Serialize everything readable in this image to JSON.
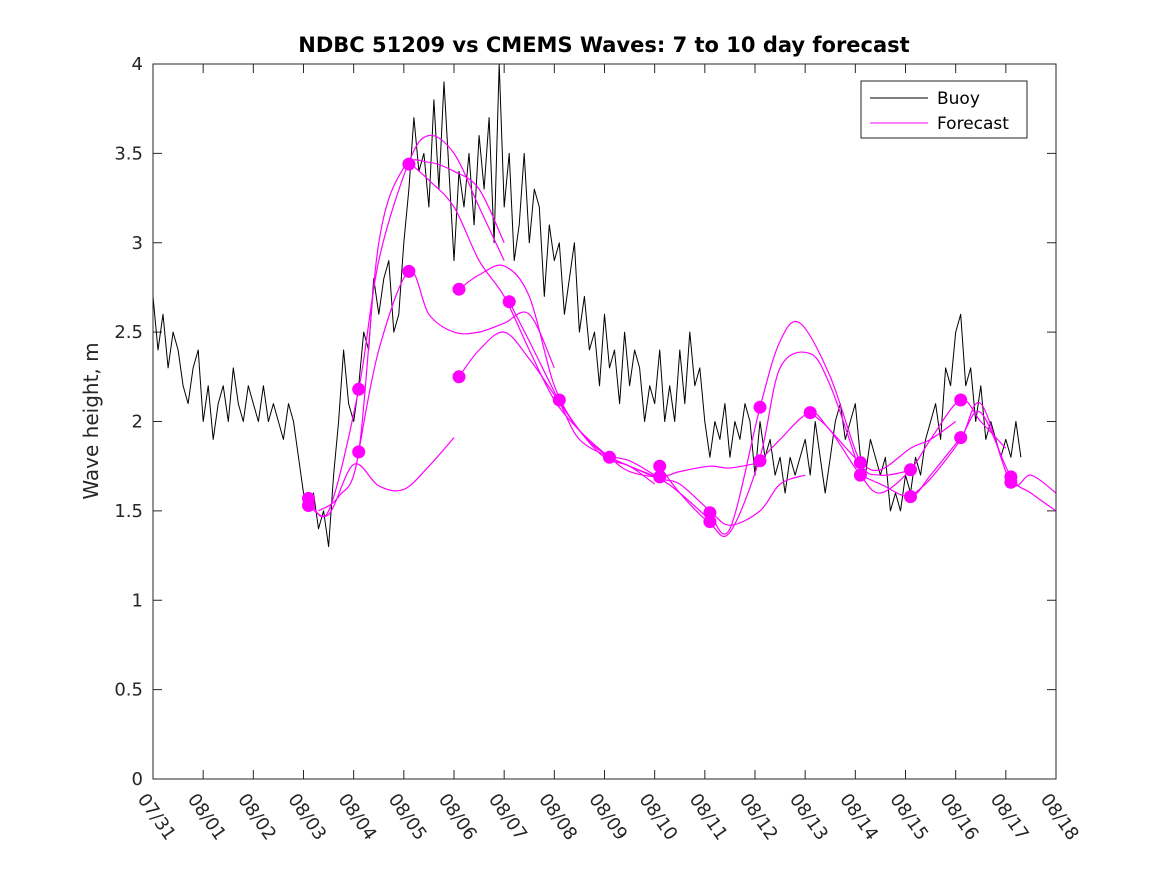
{
  "chart_data": {
    "type": "line",
    "title": "NDBC 51209 vs CMEMS Waves: 7 to 10 day forecast",
    "xlabel": "",
    "ylabel": "Wave height, m",
    "x_units": "days since 07/31",
    "xlim": [
      0,
      18
    ],
    "ylim": [
      0,
      4
    ],
    "yticks": [
      0,
      0.5,
      1,
      1.5,
      2,
      2.5,
      3,
      3.5,
      4
    ],
    "ytick_labels": [
      "0",
      "0.5",
      "1",
      "1.5",
      "2",
      "2.5",
      "3",
      "3.5",
      "4"
    ],
    "xtick_labels": [
      "07/31",
      "08/01",
      "08/02",
      "08/03",
      "08/04",
      "08/05",
      "08/06",
      "08/07",
      "08/08",
      "08/09",
      "08/10",
      "08/11",
      "08/12",
      "08/13",
      "08/14",
      "08/15",
      "08/16",
      "08/17",
      "08/18"
    ],
    "legend_position": "top-right",
    "series": [
      {
        "name": "Buoy",
        "color": "#000000",
        "x": [
          0,
          0.1,
          0.2,
          0.3,
          0.4,
          0.5,
          0.6,
          0.7,
          0.8,
          0.9,
          1.0,
          1.1,
          1.2,
          1.3,
          1.4,
          1.5,
          1.6,
          1.7,
          1.8,
          1.9,
          2.0,
          2.1,
          2.2,
          2.3,
          2.4,
          2.5,
          2.6,
          2.7,
          2.8,
          2.9,
          3.0,
          3.1,
          3.2,
          3.3,
          3.4,
          3.5,
          3.6,
          3.7,
          3.8,
          3.9,
          4.0,
          4.1,
          4.2,
          4.3,
          4.4,
          4.5,
          4.6,
          4.7,
          4.8,
          4.9,
          5.0,
          5.1,
          5.2,
          5.3,
          5.4,
          5.5,
          5.6,
          5.7,
          5.8,
          5.9,
          6.0,
          6.1,
          6.2,
          6.3,
          6.4,
          6.5,
          6.6,
          6.7,
          6.8,
          6.9,
          7.0,
          7.1,
          7.2,
          7.3,
          7.4,
          7.5,
          7.6,
          7.7,
          7.8,
          7.9,
          8.0,
          8.1,
          8.2,
          8.3,
          8.4,
          8.5,
          8.6,
          8.7,
          8.8,
          8.9,
          9.0,
          9.1,
          9.2,
          9.3,
          9.4,
          9.5,
          9.6,
          9.7,
          9.8,
          9.9,
          10.0,
          10.1,
          10.2,
          10.3,
          10.4,
          10.5,
          10.6,
          10.7,
          10.8,
          10.9,
          11.0,
          11.1,
          11.2,
          11.3,
          11.4,
          11.5,
          11.6,
          11.7,
          11.8,
          11.9,
          12.0,
          12.1,
          12.2,
          12.3,
          12.4,
          12.5,
          12.6,
          12.7,
          12.8,
          12.9,
          13.0,
          13.1,
          13.2,
          13.3,
          13.4,
          13.5,
          13.6,
          13.7,
          13.8,
          13.9,
          14.0,
          14.1,
          14.2,
          14.3,
          14.4,
          14.5,
          14.6,
          14.7,
          14.8,
          14.9,
          15.0,
          15.1,
          15.2,
          15.3,
          15.4,
          15.5,
          15.6,
          15.7,
          15.8,
          15.9,
          16.0,
          16.1,
          16.2,
          16.3,
          16.4,
          16.5,
          16.6,
          16.7,
          16.8,
          16.9,
          17.0,
          17.1,
          17.2,
          17.3
        ],
        "y": [
          2.7,
          2.4,
          2.6,
          2.3,
          2.5,
          2.4,
          2.2,
          2.1,
          2.3,
          2.4,
          2.0,
          2.2,
          1.9,
          2.1,
          2.2,
          2.0,
          2.3,
          2.1,
          2.0,
          2.2,
          2.1,
          2.0,
          2.2,
          2.0,
          2.1,
          2.0,
          1.9,
          2.1,
          2.0,
          1.8,
          1.6,
          1.5,
          1.6,
          1.4,
          1.5,
          1.3,
          1.7,
          2.0,
          2.4,
          2.1,
          2.0,
          2.2,
          2.5,
          2.4,
          2.8,
          2.6,
          2.8,
          2.9,
          2.5,
          2.6,
          3.0,
          3.3,
          3.7,
          3.4,
          3.5,
          3.2,
          3.8,
          3.3,
          3.9,
          3.4,
          2.9,
          3.4,
          3.2,
          3.5,
          3.1,
          3.6,
          3.3,
          3.7,
          3.0,
          4.0,
          3.2,
          3.5,
          2.9,
          3.1,
          3.5,
          3.0,
          3.3,
          3.2,
          2.7,
          3.1,
          2.9,
          3.0,
          2.6,
          2.8,
          3.0,
          2.5,
          2.7,
          2.4,
          2.5,
          2.2,
          2.6,
          2.3,
          2.4,
          2.1,
          2.5,
          2.2,
          2.4,
          2.3,
          2.0,
          2.2,
          2.1,
          2.4,
          2.0,
          2.2,
          2.0,
          2.4,
          2.1,
          2.5,
          2.2,
          2.3,
          2.0,
          1.8,
          2.0,
          1.9,
          2.1,
          1.8,
          2.0,
          1.9,
          2.1,
          2.0,
          1.7,
          2.0,
          1.8,
          1.9,
          1.7,
          1.8,
          1.6,
          1.8,
          1.7,
          1.8,
          1.9,
          1.7,
          2.0,
          1.8,
          1.6,
          1.8,
          2.0,
          2.1,
          1.9,
          2.0,
          2.1,
          1.8,
          1.7,
          1.9,
          1.8,
          1.7,
          1.8,
          1.5,
          1.6,
          1.5,
          1.7,
          1.6,
          1.8,
          1.7,
          1.9,
          2.0,
          2.1,
          1.9,
          2.3,
          2.2,
          2.5,
          2.6,
          2.2,
          2.3,
          2.0,
          2.2,
          1.9,
          2.0,
          1.9,
          1.8,
          1.9,
          1.8,
          2.0,
          1.8
        ]
      },
      {
        "name": "Forecast",
        "color": "#ff00ff",
        "runs": [
          {
            "x": [
              3.1,
              3.5,
              4.0,
              4.5,
              5.0,
              5.5,
              6.0
            ],
            "y": [
              1.53,
              1.48,
              1.76,
              1.64,
              1.62,
              1.75,
              1.91
            ]
          },
          {
            "x": [
              3.1,
              3.5,
              4.1,
              4.5,
              5.1,
              5.5,
              6.0,
              6.5,
              7.0
            ],
            "y": [
              1.57,
              1.5,
              2.18,
              2.9,
              3.45,
              3.6,
              3.5,
              3.2,
              2.9
            ]
          },
          {
            "x": [
              3.3,
              3.7,
              4.1,
              4.5,
              5.0,
              5.5,
              6.0,
              6.5,
              7.0
            ],
            "y": [
              1.5,
              1.58,
              1.83,
              3.0,
              3.42,
              3.45,
              3.4,
              3.3,
              3.0
            ]
          },
          {
            "x": [
              4.1,
              4.5,
              5.1,
              5.5,
              6.0,
              6.5,
              7.0,
              7.5,
              8.0
            ],
            "y": [
              1.83,
              2.4,
              2.84,
              2.6,
              2.5,
              2.5,
              2.55,
              2.6,
              2.3
            ]
          },
          {
            "x": [
              5.1,
              5.5,
              6.0,
              6.5,
              7.0,
              7.5,
              8.0,
              8.5,
              9.0
            ],
            "y": [
              3.45,
              3.35,
              3.2,
              2.9,
              2.7,
              2.4,
              2.12,
              1.95,
              1.82
            ]
          },
          {
            "x": [
              6.1,
              6.5,
              7.0,
              7.5,
              8.0,
              8.5,
              9.0,
              9.5,
              10.0
            ],
            "y": [
              2.74,
              2.82,
              2.87,
              2.7,
              2.2,
              1.95,
              1.82,
              1.78,
              1.7
            ]
          },
          {
            "x": [
              6.1,
              6.5,
              7.0,
              7.5,
              8.0,
              8.5,
              9.0,
              9.5,
              10.0
            ],
            "y": [
              2.25,
              2.4,
              2.5,
              2.35,
              2.15,
              1.95,
              1.8,
              1.75,
              1.65
            ]
          },
          {
            "x": [
              7.1,
              7.5,
              8.1,
              8.5,
              9.1,
              9.5,
              10.1,
              10.5,
              11.1
            ],
            "y": [
              2.67,
              2.45,
              2.11,
              1.9,
              1.8,
              1.75,
              1.68,
              1.6,
              1.45
            ]
          },
          {
            "x": [
              8.1,
              8.5,
              9.1,
              9.5,
              10.1,
              10.5,
              11.1,
              11.5,
              12.1
            ],
            "y": [
              2.12,
              1.95,
              1.8,
              1.72,
              1.69,
              1.72,
              1.75,
              1.74,
              1.77
            ]
          },
          {
            "x": [
              9.1,
              9.5,
              10.1,
              10.5,
              11.1,
              11.5,
              12.1,
              12.5,
              13.0
            ],
            "y": [
              1.8,
              1.75,
              1.68,
              1.65,
              1.5,
              1.42,
              1.5,
              1.65,
              1.7
            ]
          },
          {
            "x": [
              10.1,
              10.5,
              11.1,
              11.5,
              12.1,
              12.5,
              13.1,
              13.5,
              14.0
            ],
            "y": [
              1.75,
              1.6,
              1.43,
              1.38,
              1.8,
              2.3,
              2.38,
              2.2,
              1.8
            ]
          },
          {
            "x": [
              11.1,
              11.5,
              12.1,
              12.5,
              12.9,
              13.5,
              14.1,
              14.5,
              15.0
            ],
            "y": [
              1.49,
              1.4,
              2.08,
              2.45,
              2.55,
              2.25,
              1.77,
              1.7,
              1.72
            ]
          },
          {
            "x": [
              12.1,
              12.5,
              13.1,
              13.5,
              14.1,
              14.5,
              15.1,
              15.5,
              16.0
            ],
            "y": [
              1.78,
              1.9,
              2.05,
              1.95,
              1.77,
              1.73,
              1.85,
              1.9,
              2.0
            ]
          },
          {
            "x": [
              13.1,
              13.5,
              14.1,
              14.5,
              15.1,
              15.5,
              16.1,
              16.5,
              17.0
            ],
            "y": [
              2.05,
              1.95,
              1.7,
              1.6,
              1.73,
              1.9,
              2.12,
              2.0,
              1.85
            ]
          },
          {
            "x": [
              14.1,
              14.5,
              15.1,
              15.5,
              16.1,
              16.5,
              17.1,
              17.5,
              18.0
            ],
            "y": [
              1.7,
              1.65,
              1.58,
              1.7,
              1.91,
              2.05,
              1.69,
              1.6,
              1.5
            ]
          },
          {
            "x": [
              15.1,
              15.5,
              16.1,
              16.5,
              17.1,
              17.5,
              18.0
            ],
            "y": [
              1.58,
              1.68,
              1.9,
              2.1,
              1.66,
              1.7,
              1.6
            ]
          }
        ],
        "markers": {
          "x": [
            3.1,
            3.1,
            4.1,
            4.1,
            5.1,
            5.1,
            6.1,
            6.1,
            7.1,
            8.1,
            9.1,
            10.1,
            10.1,
            11.1,
            11.1,
            12.1,
            12.1,
            13.1,
            14.1,
            14.1,
            15.1,
            15.1,
            16.1,
            16.1,
            17.1,
            17.1
          ],
          "y": [
            1.57,
            1.53,
            2.18,
            1.83,
            3.44,
            2.84,
            2.74,
            2.25,
            2.67,
            2.12,
            1.8,
            1.75,
            1.69,
            1.49,
            1.44,
            2.08,
            1.78,
            2.05,
            1.77,
            1.7,
            1.73,
            1.58,
            2.12,
            1.91,
            1.69,
            1.66
          ]
        }
      }
    ]
  }
}
